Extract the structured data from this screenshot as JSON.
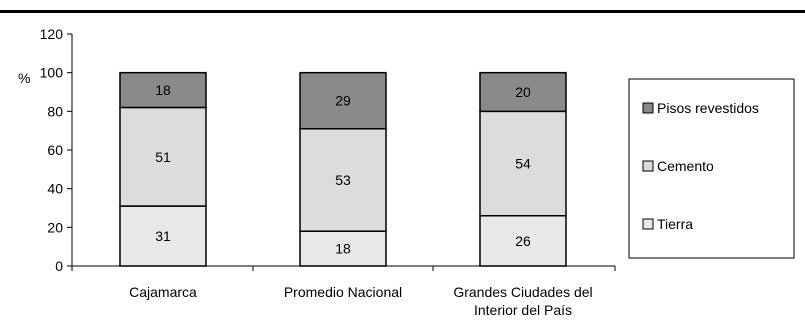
{
  "chart_data": {
    "type": "bar",
    "stacked": true,
    "categories": [
      [
        "Cajamarca"
      ],
      [
        "Promedio Nacional"
      ],
      [
        "Grandes Ciudades del",
        "Interior del País"
      ]
    ],
    "series": [
      {
        "name": "Tierra",
        "values": [
          31,
          18,
          26
        ],
        "color": "#e8e8e8"
      },
      {
        "name": "Cemento",
        "values": [
          51,
          53,
          54
        ],
        "color": "#dcdcdc"
      },
      {
        "name": "Pisos revestidos",
        "values": [
          18,
          29,
          20
        ],
        "color": "#8a8a8a"
      }
    ],
    "ylabel": "%",
    "ylim": [
      0,
      120
    ],
    "yticks": [
      "0",
      "20",
      "40",
      "60",
      "80",
      "100",
      "120"
    ],
    "grid": false,
    "legend_position": "right",
    "legend_order": [
      2,
      1,
      0
    ]
  }
}
